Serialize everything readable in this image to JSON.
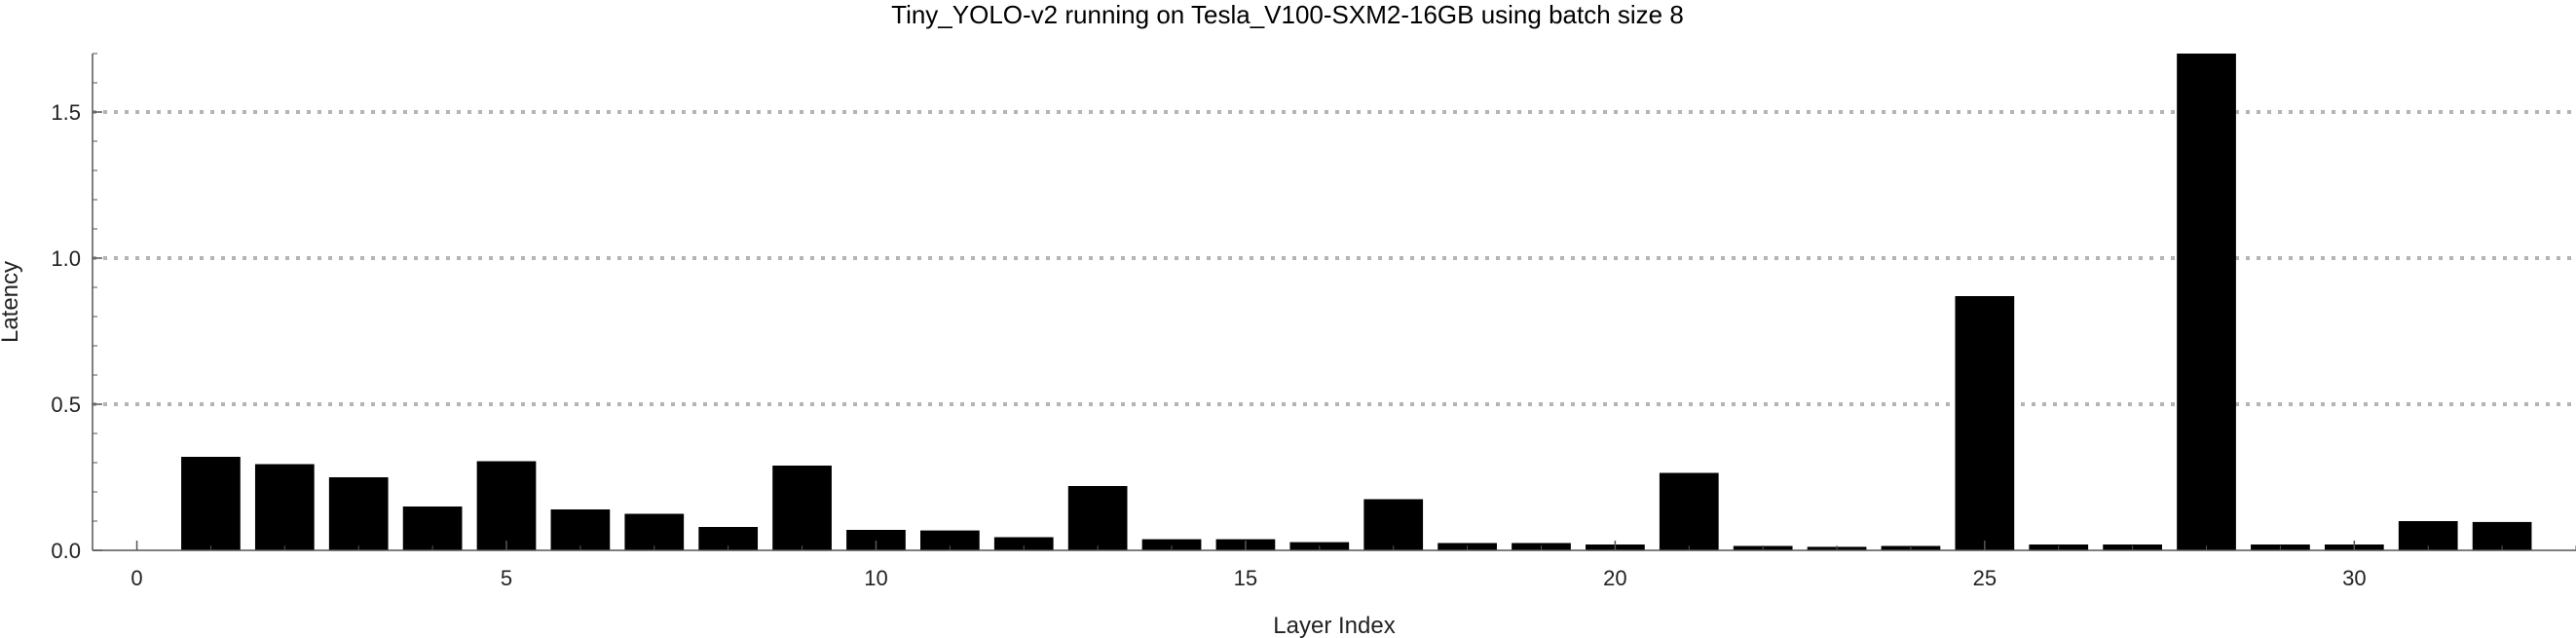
{
  "chart_data": {
    "type": "bar",
    "title": "Tiny_YOLO-v2 running on Tesla_V100-SXM2-16GB using batch size 8",
    "xlabel": "Layer Index",
    "ylabel": "Latency",
    "xlim": [
      -0.6,
      33
    ],
    "ylim": [
      0,
      1.7
    ],
    "x_ticks": [
      0,
      5,
      10,
      15,
      20,
      25,
      30
    ],
    "y_ticks": [
      0.0,
      0.5,
      1.0,
      1.5
    ],
    "y_tick_labels": [
      "0.0",
      "0.5",
      "1.0",
      "1.5"
    ],
    "grid": "horizontal-dotted",
    "categories": [
      1,
      2,
      3,
      4,
      5,
      6,
      7,
      8,
      9,
      10,
      11,
      12,
      13,
      14,
      15,
      16,
      17,
      18,
      19,
      20,
      21,
      22,
      23,
      24,
      25,
      26,
      27,
      28,
      29,
      30,
      31,
      32
    ],
    "values": [
      0.32,
      0.295,
      0.25,
      0.15,
      0.305,
      0.14,
      0.125,
      0.08,
      0.29,
      0.07,
      0.068,
      0.045,
      0.22,
      0.038,
      0.038,
      0.028,
      0.175,
      0.025,
      0.025,
      0.02,
      0.265,
      0.015,
      0.012,
      0.015,
      0.87,
      0.02,
      0.02,
      1.7,
      0.02,
      0.02,
      0.1,
      0.097
    ],
    "bar_color": "#000000",
    "grid_color": "#b4b4b4"
  }
}
